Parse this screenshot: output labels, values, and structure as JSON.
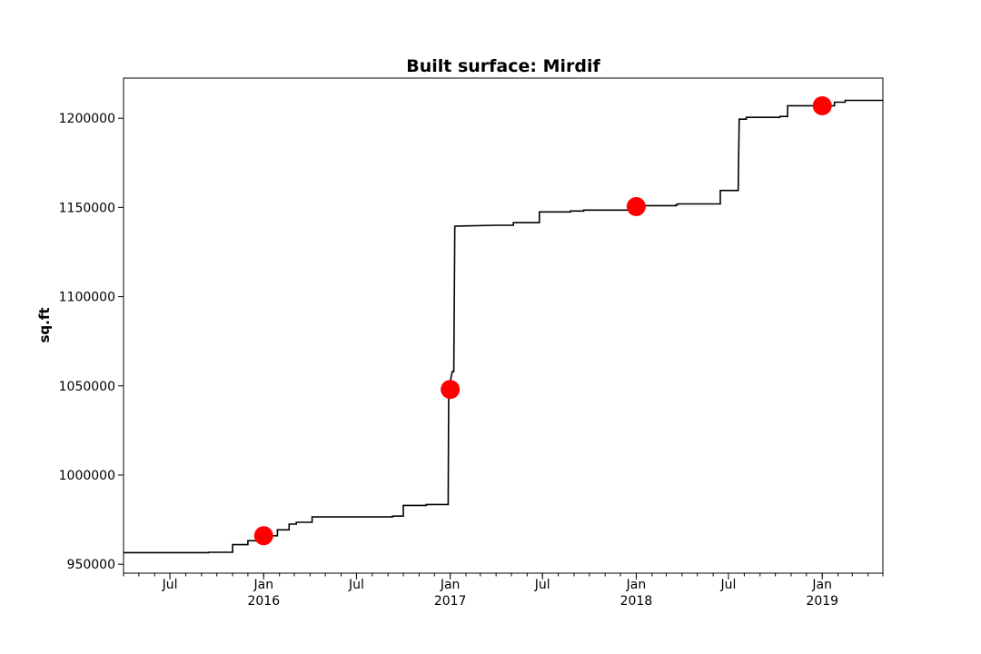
{
  "chart_data": {
    "type": "line",
    "title": "Built surface: Mirdif",
    "xlabel": "",
    "ylabel": "sq.ft",
    "xlim": [
      "2015-04-01",
      "2019-04-30"
    ],
    "ylim": [
      945000,
      1222500
    ],
    "y_ticks": [
      950000,
      1000000,
      1050000,
      1100000,
      1150000,
      1200000
    ],
    "y_tick_labels": [
      "950000",
      "1000000",
      "1050000",
      "1100000",
      "1150000",
      "1200000"
    ],
    "x_ticks": [
      {
        "date": "2015-07-01",
        "label": "Jul",
        "year": ""
      },
      {
        "date": "2016-01-01",
        "label": "Jan",
        "year": "2016"
      },
      {
        "date": "2016-07-01",
        "label": "Jul",
        "year": ""
      },
      {
        "date": "2017-01-01",
        "label": "Jan",
        "year": "2017"
      },
      {
        "date": "2017-07-01",
        "label": "Jul",
        "year": ""
      },
      {
        "date": "2018-01-01",
        "label": "Jan",
        "year": "2018"
      },
      {
        "date": "2018-07-01",
        "label": "Jul",
        "year": ""
      },
      {
        "date": "2019-01-01",
        "label": "Jan",
        "year": "2019"
      }
    ],
    "grid": false,
    "series": [
      {
        "style": "step",
        "color": "#000000",
        "points": [
          [
            "2015-04-01",
            956500
          ],
          [
            "2015-09-15",
            956500
          ],
          [
            "2015-09-15",
            956700
          ],
          [
            "2015-11-01",
            956700
          ],
          [
            "2015-11-01",
            961000
          ],
          [
            "2015-12-01",
            961000
          ],
          [
            "2015-12-01",
            963200
          ],
          [
            "2016-01-10",
            963200
          ],
          [
            "2016-01-10",
            966000
          ],
          [
            "2016-01-28",
            966000
          ],
          [
            "2016-01-28",
            969300
          ],
          [
            "2016-02-20",
            969300
          ],
          [
            "2016-02-20",
            972500
          ],
          [
            "2016-03-05",
            972500
          ],
          [
            "2016-03-05",
            973500
          ],
          [
            "2016-04-05",
            973500
          ],
          [
            "2016-04-05",
            976500
          ],
          [
            "2016-09-10",
            976500
          ],
          [
            "2016-09-10",
            977000
          ],
          [
            "2016-10-01",
            977000
          ],
          [
            "2016-10-01",
            983000
          ],
          [
            "2016-11-15",
            983000
          ],
          [
            "2016-11-15",
            983500
          ],
          [
            "2016-12-28",
            983500
          ],
          [
            "2016-12-28",
            984200
          ],
          [
            "2016-12-29",
            1048000
          ],
          [
            "2017-01-05",
            1058000
          ],
          [
            "2017-01-05",
            1058000
          ],
          [
            "2017-01-08",
            1058000
          ],
          [
            "2017-01-10",
            1139500
          ],
          [
            "2017-04-01",
            1140000
          ],
          [
            "2017-05-05",
            1140000
          ],
          [
            "2017-05-05",
            1141500
          ],
          [
            "2017-06-25",
            1141500
          ],
          [
            "2017-06-25",
            1147500
          ],
          [
            "2017-08-25",
            1147500
          ],
          [
            "2017-08-25",
            1148000
          ],
          [
            "2017-09-20",
            1148000
          ],
          [
            "2017-09-20",
            1148500
          ],
          [
            "2018-01-15",
            1148500
          ],
          [
            "2018-01-15",
            1151000
          ],
          [
            "2018-03-20",
            1151000
          ],
          [
            "2018-03-20",
            1151500
          ],
          [
            "2018-03-23",
            1151500
          ],
          [
            "2018-03-23",
            1152000
          ],
          [
            "2018-06-15",
            1152000
          ],
          [
            "2018-06-15",
            1159500
          ],
          [
            "2018-07-20",
            1159500
          ],
          [
            "2018-07-22",
            1199500
          ],
          [
            "2018-08-05",
            1199500
          ],
          [
            "2018-08-05",
            1200500
          ],
          [
            "2018-10-10",
            1200500
          ],
          [
            "2018-10-10",
            1201000
          ],
          [
            "2018-10-25",
            1201000
          ],
          [
            "2018-10-25",
            1207000
          ],
          [
            "2019-01-25",
            1207000
          ],
          [
            "2019-01-25",
            1209000
          ],
          [
            "2019-02-15",
            1209000
          ],
          [
            "2019-02-15",
            1210000
          ],
          [
            "2019-04-30",
            1210000
          ]
        ]
      },
      {
        "style": "markers",
        "color": "#ff0000",
        "points": [
          [
            "2016-01-01",
            966000
          ],
          [
            "2017-01-01",
            1048000
          ],
          [
            "2018-01-01",
            1150500
          ],
          [
            "2019-01-01",
            1207000
          ]
        ]
      }
    ]
  }
}
